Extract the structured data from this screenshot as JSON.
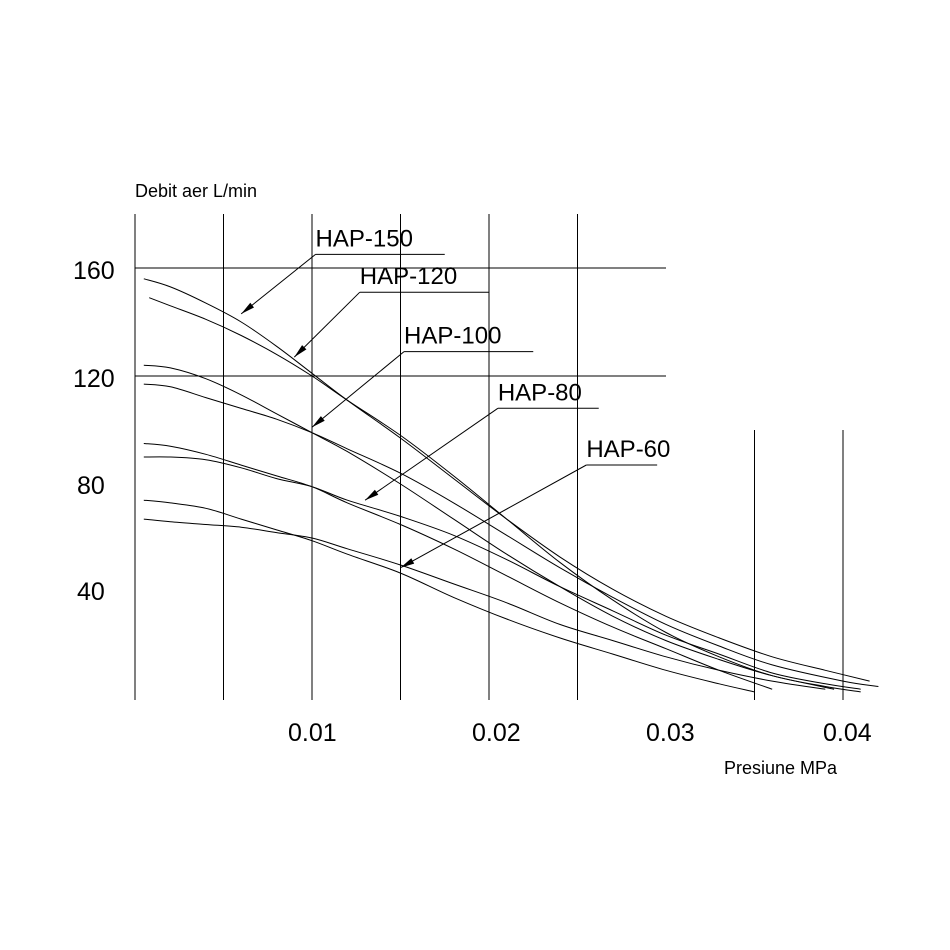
{
  "chart_data": {
    "type": "line",
    "ylabel": "Debit aer L/min",
    "xlabel": "Presiune MPa",
    "xlim": [
      0,
      0.042
    ],
    "ylim": [
      0,
      180
    ],
    "x_ticks": [
      "0.01",
      "0.02",
      "0.03",
      "0.04"
    ],
    "y_ticks": [
      "160",
      "120",
      "80",
      "40"
    ],
    "grid": true,
    "series": [
      {
        "name": "HAP-150",
        "pairs": [
          {
            "name": "HAP-150 A",
            "x": [
              0.0005,
              0.002,
              0.004,
              0.006,
              0.008,
              0.01,
              0.012,
              0.015,
              0.018,
              0.021,
              0.024,
              0.027,
              0.03,
              0.033,
              0.036,
              0.039,
              0.0415
            ],
            "y": [
              156,
              153,
              147,
              140,
              131,
              121,
              111,
              97,
              82,
              67,
              53,
              41,
              31,
              23,
              16,
              11,
              7
            ]
          },
          {
            "name": "HAP-150 B",
            "x": [
              0.0008,
              0.002,
              0.004,
              0.006,
              0.008,
              0.01,
              0.012,
              0.015,
              0.018,
              0.021,
              0.024,
              0.027,
              0.03,
              0.033,
              0.036,
              0.039,
              0.041
            ],
            "y": [
              149,
              146,
              141,
              135,
              128,
              120,
              111,
              98,
              83,
              67,
              51,
              37,
              25,
              16,
              9,
              5,
              3
            ]
          }
        ]
      },
      {
        "name": "HAP-120",
        "pairs": [
          {
            "name": "HAP-120 A",
            "x": [
              0.0005,
              0.002,
              0.004,
              0.006,
              0.008,
              0.01,
              0.012,
              0.015,
              0.018,
              0.021,
              0.024,
              0.027,
              0.03,
              0.033,
              0.036,
              0.0395
            ],
            "y": [
              124,
              123,
              119,
              113,
              106,
              99,
              92,
              80,
              67,
              54,
              42,
              31,
              22,
              15,
              9,
              4
            ]
          },
          {
            "name": "HAP-120 B",
            "x": [
              0.0005,
              0.002,
              0.004,
              0.006,
              0.008,
              0.01,
              0.012,
              0.015,
              0.018,
              0.021,
              0.024,
              0.027,
              0.03,
              0.033,
              0.036,
              0.04,
              0.042
            ],
            "y": [
              117,
              116,
              112,
              108,
              104,
              99,
              93,
              84,
              73,
              61,
              49,
              38,
              28,
              20,
              13,
              7,
              5
            ]
          }
        ]
      },
      {
        "name": "HAP-100",
        "pairs": [
          {
            "name": "HAP-100 A",
            "x": [
              0.0005,
              0.002,
              0.004,
              0.006,
              0.008,
              0.01,
              0.012,
              0.015,
              0.018,
              0.021,
              0.024,
              0.027,
              0.03,
              0.033,
              0.036
            ],
            "y": [
              95,
              94,
              91,
              87,
              83,
              79,
              73,
              65,
              56,
              46,
              36,
              27,
              19,
              11,
              4
            ]
          },
          {
            "name": "HAP-100 B",
            "x": [
              0.0005,
              0.002,
              0.004,
              0.006,
              0.008,
              0.01,
              0.012,
              0.015,
              0.018,
              0.021,
              0.024,
              0.027,
              0.03,
              0.033,
              0.036,
              0.039,
              0.041
            ],
            "y": [
              90,
              90,
              89,
              86,
              82,
              79,
              74,
              68,
              61,
              52,
              42,
              33,
              24,
              17,
              10,
              6,
              4
            ]
          }
        ]
      },
      {
        "name": "HAP-80",
        "pairs": [
          {
            "name": "HAP-80 A",
            "x": [
              0.0005,
              0.002,
              0.004,
              0.006,
              0.008,
              0.01,
              0.012,
              0.015,
              0.018,
              0.021,
              0.024,
              0.027,
              0.03,
              0.033,
              0.035
            ],
            "y": [
              74,
              73,
              71,
              67,
              63,
              59,
              54,
              47,
              38,
              30,
              23,
              17,
              11,
              6,
              3
            ]
          },
          {
            "name": "HAP-80 B",
            "x": [
              0.0005,
              0.002,
              0.004,
              0.006,
              0.008,
              0.01,
              0.012,
              0.015,
              0.018,
              0.021,
              0.024,
              0.027,
              0.03,
              0.033,
              0.036,
              0.039
            ],
            "y": [
              67,
              66,
              65,
              64,
              62,
              60,
              56,
              50,
              43,
              36,
              28,
              22,
              16,
              11,
              7,
              4
            ]
          }
        ]
      }
    ],
    "annotations": [
      {
        "label": "HAP-150",
        "text_x": 0.0102,
        "text_y": 168,
        "underline_end": 0.0175,
        "target_x": 0.006,
        "target_y": 143
      },
      {
        "label": "HAP-120",
        "text_x": 0.0127,
        "text_y": 154,
        "underline_end": 0.02,
        "target_x": 0.009,
        "target_y": 127
      },
      {
        "label": "HAP-100",
        "text_x": 0.0152,
        "text_y": 132,
        "underline_end": 0.0225,
        "target_x": 0.01,
        "target_y": 101
      },
      {
        "label": "HAP-80",
        "text_x": 0.0205,
        "text_y": 111,
        "underline_end": 0.0262,
        "target_x": 0.013,
        "target_y": 74
      },
      {
        "label": "HAP-60",
        "text_x": 0.0255,
        "text_y": 90,
        "underline_end": 0.0295,
        "target_x": 0.015,
        "target_y": 49
      }
    ]
  }
}
